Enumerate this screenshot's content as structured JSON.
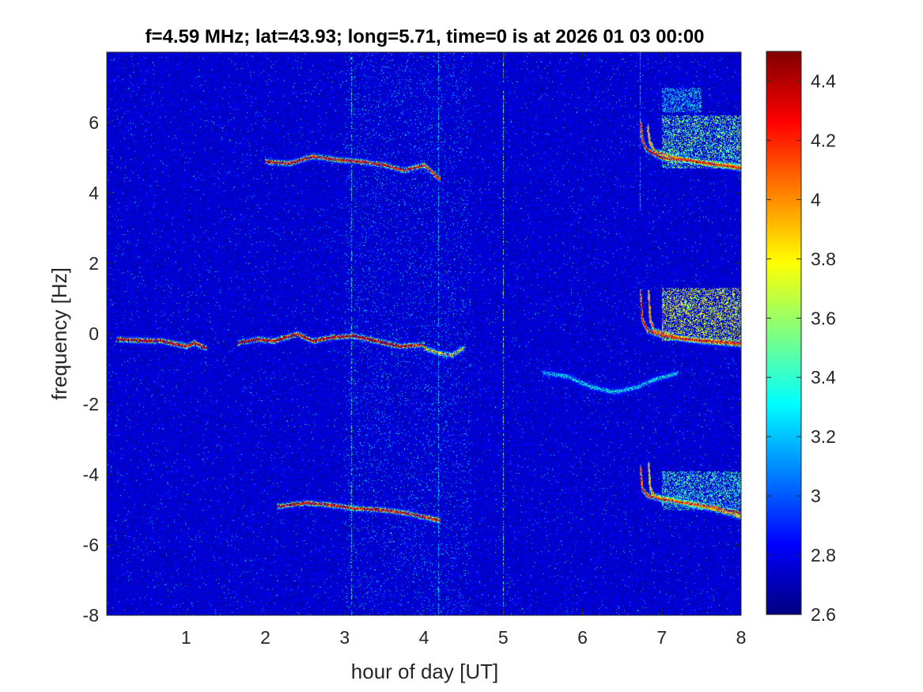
{
  "chart_data": {
    "type": "heatmap",
    "title": "f=4.59 MHz;  lat=43.93; long=5.71, time=0 is at 2026 01 03 00:00",
    "xlabel": "hour of day [UT]",
    "ylabel": "frequency [Hz]",
    "xlim": [
      0,
      8
    ],
    "ylim": [
      -8,
      8
    ],
    "x_ticks": [
      1,
      2,
      3,
      4,
      5,
      6,
      7,
      8
    ],
    "y_ticks": [
      -8,
      -6,
      -4,
      -2,
      0,
      2,
      4,
      6
    ],
    "colorbar": {
      "colormap": "jet",
      "clim": [
        2.6,
        4.5
      ],
      "ticks": [
        2.6,
        2.8,
        3,
        3.2,
        3.4,
        3.6,
        3.8,
        4,
        4.2,
        4.4
      ],
      "tick_labels": [
        "2.6",
        "2.8",
        "3",
        "3.2",
        "3.4",
        "3.6",
        "3.8",
        "4",
        "4.2",
        "4.4"
      ]
    },
    "background_level": 2.75,
    "noisy_band_hours": [
      3.0,
      4.6
    ],
    "traces": [
      {
        "points": [
          [
            0.12,
            -0.15
          ],
          [
            0.4,
            -0.18
          ],
          [
            0.7,
            -0.2
          ],
          [
            0.9,
            -0.3
          ],
          [
            1.0,
            -0.35
          ],
          [
            1.1,
            -0.25
          ],
          [
            1.25,
            -0.4
          ]
        ],
        "level": 4.4
      },
      {
        "points": [
          [
            1.65,
            -0.25
          ],
          [
            1.9,
            -0.15
          ],
          [
            2.1,
            -0.2
          ],
          [
            2.4,
            0.0
          ],
          [
            2.6,
            -0.2
          ],
          [
            2.8,
            -0.1
          ],
          [
            3.1,
            -0.05
          ],
          [
            3.4,
            -0.2
          ],
          [
            3.7,
            -0.35
          ],
          [
            4.0,
            -0.3
          ]
        ],
        "level": 4.4
      },
      {
        "points": [
          [
            4.0,
            -0.4
          ],
          [
            4.2,
            -0.55
          ],
          [
            4.35,
            -0.6
          ],
          [
            4.5,
            -0.4
          ]
        ],
        "level": 3.9
      },
      {
        "points": [
          [
            2.0,
            4.9
          ],
          [
            2.3,
            4.85
          ],
          [
            2.6,
            5.05
          ],
          [
            2.9,
            4.95
          ],
          [
            3.2,
            4.9
          ],
          [
            3.5,
            4.8
          ],
          [
            3.75,
            4.65
          ],
          [
            4.0,
            4.8
          ],
          [
            4.2,
            4.4
          ]
        ],
        "level": 4.3
      },
      {
        "points": [
          [
            2.15,
            -4.9
          ],
          [
            2.5,
            -4.8
          ],
          [
            2.8,
            -4.85
          ],
          [
            3.1,
            -4.95
          ],
          [
            3.5,
            -5.0
          ],
          [
            3.8,
            -5.1
          ],
          [
            4.1,
            -5.25
          ],
          [
            4.2,
            -5.3
          ]
        ],
        "level": 4.3
      },
      {
        "points": [
          [
            6.73,
            6.0
          ],
          [
            6.75,
            5.5
          ],
          [
            6.8,
            5.25
          ],
          [
            7.0,
            5.0
          ],
          [
            7.3,
            4.95
          ],
          [
            7.6,
            4.85
          ],
          [
            7.9,
            4.75
          ],
          [
            8.0,
            4.7
          ]
        ],
        "level": 4.4
      },
      {
        "points": [
          [
            6.82,
            5.9
          ],
          [
            6.84,
            5.5
          ],
          [
            6.9,
            5.2
          ],
          [
            7.1,
            5.05
          ],
          [
            7.4,
            4.9
          ],
          [
            7.7,
            4.8
          ],
          [
            8.0,
            4.75
          ]
        ],
        "level": 4.1
      },
      {
        "points": [
          [
            6.73,
            1.2
          ],
          [
            6.75,
            0.4
          ],
          [
            6.82,
            0.1
          ],
          [
            7.0,
            -0.05
          ],
          [
            7.3,
            -0.15
          ],
          [
            7.6,
            -0.2
          ],
          [
            7.9,
            -0.25
          ],
          [
            8.0,
            -0.25
          ]
        ],
        "level": 4.4
      },
      {
        "points": [
          [
            6.83,
            1.2
          ],
          [
            6.85,
            0.4
          ],
          [
            6.9,
            0.1
          ],
          [
            7.2,
            -0.1
          ],
          [
            7.5,
            -0.2
          ],
          [
            8.0,
            -0.3
          ]
        ],
        "level": 4.1
      },
      {
        "points": [
          [
            6.73,
            -3.8
          ],
          [
            6.75,
            -4.4
          ],
          [
            6.82,
            -4.6
          ],
          [
            7.0,
            -4.7
          ],
          [
            7.3,
            -4.8
          ],
          [
            7.6,
            -4.9
          ],
          [
            8.0,
            -5.1
          ]
        ],
        "level": 4.3
      },
      {
        "points": [
          [
            6.83,
            -3.7
          ],
          [
            6.85,
            -4.4
          ],
          [
            6.9,
            -4.6
          ],
          [
            7.1,
            -4.7
          ],
          [
            7.4,
            -4.85
          ],
          [
            7.7,
            -5.0
          ],
          [
            8.0,
            -5.2
          ]
        ],
        "level": 4.0
      },
      {
        "points": [
          [
            5.5,
            -1.1
          ],
          [
            5.8,
            -1.2
          ],
          [
            6.1,
            -1.5
          ],
          [
            6.4,
            -1.65
          ],
          [
            6.7,
            -1.5
          ],
          [
            6.9,
            -1.3
          ],
          [
            7.2,
            -1.1
          ]
        ],
        "level": 3.35
      }
    ],
    "diffuse_patches": [
      {
        "x": [
          7.0,
          8.0
        ],
        "y": [
          4.7,
          6.2
        ],
        "level": 3.55
      },
      {
        "x": [
          7.0,
          8.0
        ],
        "y": [
          -0.2,
          1.3
        ],
        "level": 3.75
      },
      {
        "x": [
          7.0,
          8.0
        ],
        "y": [
          -5.0,
          -3.9
        ],
        "level": 3.45
      },
      {
        "x": [
          7.0,
          7.5
        ],
        "y": [
          6.3,
          7.0
        ],
        "level": 3.3
      }
    ],
    "vertical_streaks": [
      {
        "x": 3.08,
        "y": [
          -8,
          8
        ],
        "level": 3.4
      },
      {
        "x": 4.18,
        "y": [
          -8,
          8
        ],
        "level": 3.3
      },
      {
        "x": 5.0,
        "y": [
          -8,
          8
        ],
        "level": 3.6
      },
      {
        "x": 6.72,
        "y": [
          3.5,
          8
        ],
        "level": 3.3
      }
    ]
  }
}
